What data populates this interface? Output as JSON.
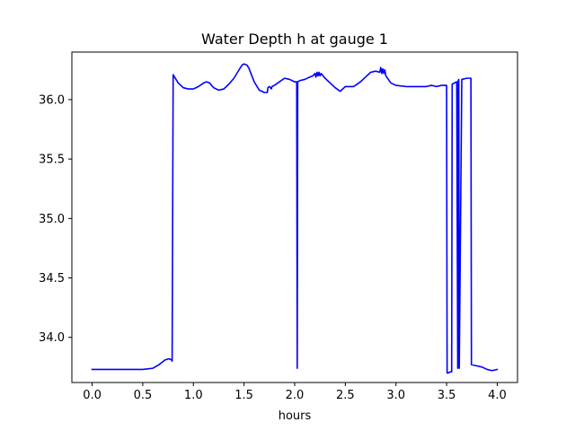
{
  "chart_data": {
    "type": "line",
    "title": "Water Depth h at gauge 1",
    "xlabel": "hours",
    "ylabel": "",
    "xlim": [
      -0.2,
      4.2
    ],
    "ylim": [
      33.62,
      36.4
    ],
    "grid": false,
    "x_ticks": [
      0.0,
      0.5,
      1.0,
      1.5,
      2.0,
      2.5,
      3.0,
      3.5,
      4.0
    ],
    "x_tick_labels": [
      "0.0",
      "0.5",
      "1.0",
      "1.5",
      "2.0",
      "2.5",
      "3.0",
      "3.5",
      "4.0"
    ],
    "y_ticks": [
      34.0,
      34.5,
      35.0,
      35.5,
      36.0
    ],
    "y_tick_labels": [
      "34.0",
      "34.5",
      "35.0",
      "35.5",
      "36.0"
    ],
    "series": [
      {
        "color": "#0000ff",
        "x": [
          0.0,
          0.3,
          0.5,
          0.6,
          0.66,
          0.72,
          0.76,
          0.785,
          0.79,
          0.8,
          0.85,
          0.9,
          0.95,
          1.0,
          1.05,
          1.1,
          1.13,
          1.16,
          1.2,
          1.25,
          1.3,
          1.35,
          1.4,
          1.45,
          1.48,
          1.5,
          1.53,
          1.55,
          1.6,
          1.65,
          1.7,
          1.73,
          1.735,
          1.75,
          1.77,
          1.775,
          1.8,
          1.85,
          1.9,
          1.95,
          2.0,
          2.02,
          2.025,
          2.03,
          2.05,
          2.1,
          2.15,
          2.18,
          2.2,
          2.21,
          2.22,
          2.23,
          2.24,
          2.25,
          2.26,
          2.3,
          2.35,
          2.4,
          2.45,
          2.5,
          2.55,
          2.58,
          2.6,
          2.65,
          2.7,
          2.75,
          2.8,
          2.84,
          2.85,
          2.86,
          2.87,
          2.88,
          2.89,
          2.9,
          2.95,
          3.0,
          3.1,
          3.2,
          3.3,
          3.35,
          3.4,
          3.45,
          3.5,
          3.505,
          3.51,
          3.54,
          3.55,
          3.555,
          3.6,
          3.61,
          3.615,
          3.62,
          3.625,
          3.65,
          3.7,
          3.74,
          3.745,
          3.8,
          3.85,
          3.9,
          3.95,
          4.0
        ],
        "y": [
          33.73,
          33.73,
          33.73,
          33.74,
          33.77,
          33.81,
          33.82,
          33.81,
          33.8,
          36.21,
          36.14,
          36.1,
          36.09,
          36.09,
          36.11,
          36.14,
          36.15,
          36.14,
          36.1,
          36.08,
          36.09,
          36.13,
          36.18,
          36.25,
          36.29,
          36.3,
          36.29,
          36.26,
          36.15,
          36.08,
          36.06,
          36.06,
          36.1,
          36.11,
          36.09,
          36.11,
          36.12,
          36.15,
          36.18,
          36.17,
          36.15,
          36.15,
          33.74,
          36.15,
          36.16,
          36.17,
          36.19,
          36.2,
          36.22,
          36.19,
          36.23,
          36.2,
          36.23,
          36.2,
          36.22,
          36.18,
          36.14,
          36.1,
          36.07,
          36.11,
          36.11,
          36.11,
          36.12,
          36.15,
          36.19,
          36.23,
          36.24,
          36.23,
          36.27,
          36.22,
          36.26,
          36.22,
          36.25,
          36.2,
          36.14,
          36.12,
          36.11,
          36.11,
          36.11,
          36.12,
          36.11,
          36.12,
          36.12,
          33.7,
          33.7,
          33.71,
          33.71,
          36.13,
          36.15,
          33.74,
          36.16,
          36.17,
          33.74,
          36.17,
          36.18,
          36.18,
          33.77,
          33.76,
          33.75,
          33.73,
          33.72,
          33.73
        ]
      }
    ]
  }
}
